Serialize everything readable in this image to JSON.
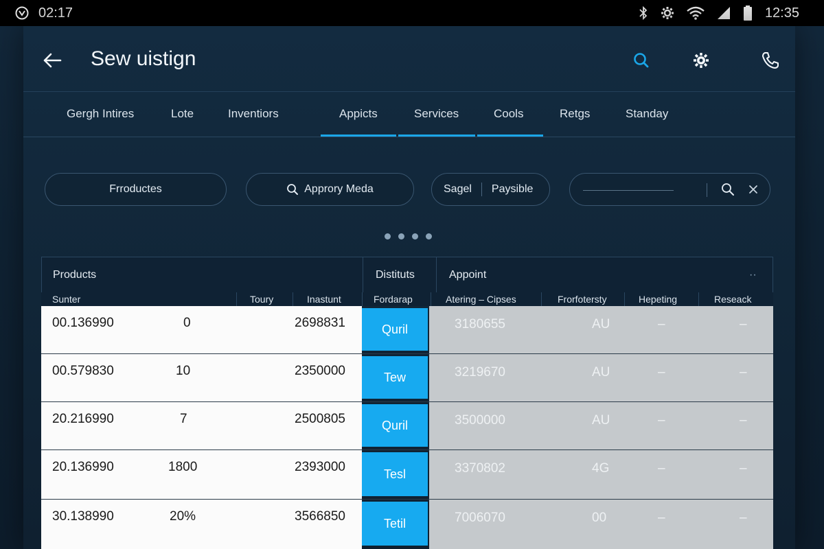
{
  "status_bar": {
    "time_left": "02:17",
    "time_right": "12:35"
  },
  "header": {
    "title": "Sew uistign"
  },
  "tabs": [
    "Gergh Intires",
    "Lote",
    "Inventiors",
    "Appicts",
    "Services",
    "Cools",
    "Retgs",
    "Standay"
  ],
  "filters": {
    "products_chip": "Frroductes",
    "search_chip": "Approry Meda",
    "sagel": "Sagel",
    "paysible": "Paysible"
  },
  "table": {
    "group_headers": {
      "products": "Products",
      "distituts": "Distituts",
      "appoint": "Appoint",
      "more": "··"
    },
    "columns": [
      "Sunter",
      "Toury",
      "Inastunt",
      "Fordarap",
      "Atering – Cipses",
      "Frorfotersty",
      "Hepeting",
      "Reseack"
    ],
    "rows": [
      {
        "sunter": "00.136990",
        "toury": "0",
        "inastunt": "2698831",
        "fordarap": "Quril",
        "atering": "3180655",
        "frorf": "AU",
        "hepeting": "–",
        "reseack": "–"
      },
      {
        "sunter": "00.579830",
        "toury": "10",
        "inastunt": "2350000",
        "fordarap": "Tew",
        "atering": "3219670",
        "frorf": "AU",
        "hepeting": "–",
        "reseack": "–"
      },
      {
        "sunter": "20.216990",
        "toury": "7",
        "inastunt": "2500805",
        "fordarap": "Quril",
        "atering": "3500000",
        "frorf": "AU",
        "hepeting": "–",
        "reseack": "–"
      },
      {
        "sunter": "20.136990",
        "toury": "1800",
        "inastunt": "2393000",
        "fordarap": "Tesl",
        "atering": "3370802",
        "frorf": "4G",
        "hepeting": "–",
        "reseack": "–"
      },
      {
        "sunter": "30.138990",
        "toury": "20%",
        "inastunt": "3566850",
        "fordarap": "Tetil",
        "atering": "7006070",
        "frorf": "00",
        "hepeting": "–",
        "reseack": "–"
      }
    ]
  },
  "colors": {
    "accent": "#1aa6e8",
    "button_blue": "#17aaf0",
    "background": "#0c1824"
  },
  "icons": [
    "app-logo-icon",
    "bluetooth-icon",
    "settings-gear-icon",
    "wifi-icon",
    "signal-icon",
    "battery-icon",
    "back-arrow-icon",
    "search-icon",
    "gear-icon",
    "phone-icon",
    "clear-icon"
  ]
}
